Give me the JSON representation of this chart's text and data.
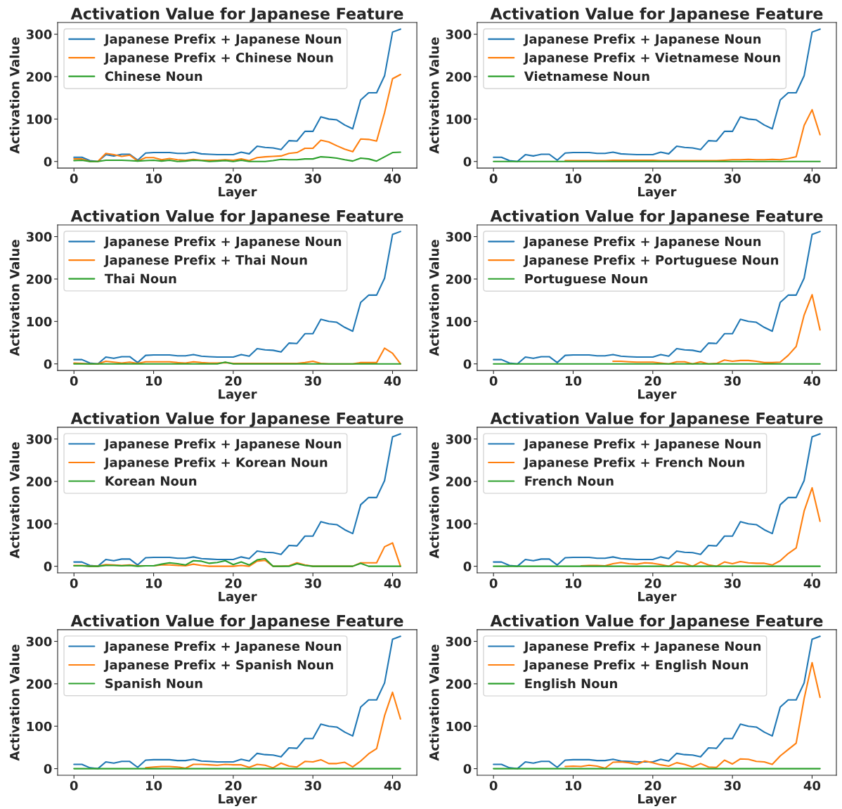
{
  "chart_data": [
    {
      "type": "line",
      "title": "Activation Value for Japanese Feature",
      "xlabel": "Layer",
      "ylabel": "Activation Value",
      "legend": "top left",
      "xlim": [
        -2.05,
        43.05
      ],
      "ylim": [
        -15.6,
        327.6
      ],
      "xticks": [
        0,
        10,
        20,
        30,
        40
      ],
      "yticks": [
        0,
        100,
        200,
        300
      ],
      "x": [
        0,
        1,
        2,
        3,
        4,
        5,
        6,
        7,
        8,
        9,
        10,
        11,
        12,
        13,
        14,
        15,
        16,
        17,
        18,
        19,
        20,
        21,
        22,
        23,
        24,
        25,
        26,
        27,
        28,
        29,
        30,
        31,
        32,
        33,
        34,
        35,
        36,
        37,
        38,
        39,
        40,
        41
      ],
      "series": [
        {
          "name": "Japanese Prefix + Japanese Noun",
          "color": "#1f77b4",
          "values": [
            10,
            10,
            2,
            0,
            16,
            13,
            17,
            17,
            3,
            20,
            21,
            21,
            21,
            19,
            19,
            22,
            18,
            17,
            16,
            16,
            16,
            22,
            18,
            36,
            33,
            32,
            28,
            49,
            48,
            71,
            71,
            105,
            100,
            98,
            86,
            77,
            145,
            162,
            162,
            202,
            305,
            312
          ]
        },
        {
          "name": "Japanese Prefix + Chinese Noun",
          "color": "#ff7f0e",
          "values": [
            6,
            6,
            0,
            0,
            19,
            16,
            12,
            15,
            1,
            9,
            9,
            4,
            7,
            4,
            3,
            5,
            3,
            3,
            3,
            4,
            3,
            6,
            2,
            9,
            11,
            12,
            13,
            19,
            21,
            31,
            31,
            50,
            46,
            37,
            29,
            23,
            53,
            52,
            48,
            115,
            195,
            205
          ]
        },
        {
          "name": "Chinese Noun",
          "color": "#2ca02c",
          "values": [
            2,
            3,
            0,
            0,
            3,
            3,
            3,
            2,
            1,
            2,
            3,
            1,
            3,
            0,
            1,
            3,
            2,
            0,
            1,
            2,
            0,
            3,
            0,
            0,
            0,
            2,
            5,
            4,
            4,
            6,
            6,
            11,
            10,
            8,
            4,
            1,
            8,
            6,
            1,
            11,
            21,
            22
          ]
        }
      ]
    },
    {
      "type": "line",
      "title": "Activation Value for Japanese Feature",
      "xlabel": "Layer",
      "ylabel": "Activation Value",
      "legend": "top left",
      "xlim": [
        -2.05,
        43.05
      ],
      "ylim": [
        -15.6,
        327.6
      ],
      "xticks": [
        0,
        10,
        20,
        30,
        40
      ],
      "yticks": [
        0,
        100,
        200,
        300
      ],
      "x": [
        0,
        1,
        2,
        3,
        4,
        5,
        6,
        7,
        8,
        9,
        10,
        11,
        12,
        13,
        14,
        15,
        16,
        17,
        18,
        19,
        20,
        21,
        22,
        23,
        24,
        25,
        26,
        27,
        28,
        29,
        30,
        31,
        32,
        33,
        34,
        35,
        36,
        37,
        38,
        39,
        40,
        41
      ],
      "series": [
        {
          "name": "Japanese Prefix + Japanese Noun",
          "color": "#1f77b4",
          "values": [
            10,
            10,
            2,
            0,
            16,
            13,
            17,
            17,
            3,
            20,
            21,
            21,
            21,
            19,
            19,
            22,
            18,
            17,
            16,
            16,
            16,
            22,
            18,
            36,
            33,
            32,
            28,
            49,
            48,
            71,
            71,
            105,
            100,
            98,
            86,
            77,
            145,
            162,
            162,
            202,
            305,
            312
          ]
        },
        {
          "name": "Japanese Prefix + Vietnamese Noun",
          "color": "#ff7f0e",
          "values": [
            null,
            null,
            null,
            null,
            null,
            null,
            null,
            null,
            null,
            2,
            2,
            2,
            2,
            2,
            2,
            3,
            3,
            3,
            3,
            3,
            3,
            2,
            2,
            2,
            2,
            2,
            2,
            2,
            2,
            3,
            4,
            4,
            5,
            4,
            4,
            5,
            4,
            7,
            11,
            85,
            122,
            63
          ]
        },
        {
          "name": "Vietnamese Noun",
          "color": "#2ca02c",
          "values": [
            0,
            0,
            0,
            0,
            0,
            0,
            0,
            0,
            0,
            0,
            0,
            0,
            0,
            0,
            0,
            0,
            0,
            0,
            0,
            0,
            0,
            0,
            0,
            0,
            0,
            0,
            0,
            0,
            0,
            0,
            0,
            0,
            0,
            0,
            0,
            0,
            0,
            0,
            0,
            0,
            0,
            0
          ]
        }
      ]
    },
    {
      "type": "line",
      "title": "Activation Value for Japanese Feature",
      "xlabel": "Layer",
      "ylabel": "Activation Value",
      "legend": "top left",
      "xlim": [
        -2.05,
        43.05
      ],
      "ylim": [
        -15.6,
        327.6
      ],
      "xticks": [
        0,
        10,
        20,
        30,
        40
      ],
      "yticks": [
        0,
        100,
        200,
        300
      ],
      "x": [
        0,
        1,
        2,
        3,
        4,
        5,
        6,
        7,
        8,
        9,
        10,
        11,
        12,
        13,
        14,
        15,
        16,
        17,
        18,
        19,
        20,
        21,
        22,
        23,
        24,
        25,
        26,
        27,
        28,
        29,
        30,
        31,
        32,
        33,
        34,
        35,
        36,
        37,
        38,
        39,
        40,
        41
      ],
      "series": [
        {
          "name": "Japanese Prefix + Japanese Noun",
          "color": "#1f77b4",
          "values": [
            10,
            10,
            2,
            0,
            16,
            13,
            17,
            17,
            3,
            20,
            21,
            21,
            21,
            19,
            19,
            22,
            18,
            17,
            16,
            16,
            16,
            22,
            18,
            36,
            33,
            32,
            28,
            49,
            48,
            71,
            71,
            105,
            100,
            98,
            86,
            77,
            145,
            162,
            162,
            202,
            305,
            312
          ]
        },
        {
          "name": "Japanese Prefix + Thai Noun",
          "color": "#ff7f0e",
          "values": [
            2,
            1,
            0,
            0,
            6,
            4,
            2,
            4,
            1,
            5,
            5,
            5,
            5,
            3,
            2,
            5,
            3,
            2,
            2,
            3,
            1,
            1,
            1,
            1,
            1,
            1,
            1,
            1,
            1,
            3,
            6,
            1,
            0,
            0,
            0,
            0,
            3,
            3,
            3,
            37,
            25,
            0
          ]
        },
        {
          "name": "Thai Noun",
          "color": "#2ca02c",
          "values": [
            0,
            0,
            0,
            0,
            0,
            0,
            0,
            0,
            0,
            0,
            0,
            0,
            0,
            0,
            0,
            0,
            0,
            0,
            0,
            4,
            0,
            0,
            0,
            0,
            0,
            0,
            0,
            0,
            0,
            0,
            0,
            0,
            0,
            0,
            0,
            0,
            0,
            0,
            0,
            0,
            0,
            0
          ]
        }
      ]
    },
    {
      "type": "line",
      "title": "Activation Value for Japanese Feature",
      "xlabel": "Layer",
      "ylabel": "Activation Value",
      "legend": "top left",
      "xlim": [
        -2.05,
        43.05
      ],
      "ylim": [
        -15.6,
        327.6
      ],
      "xticks": [
        0,
        10,
        20,
        30,
        40
      ],
      "yticks": [
        0,
        100,
        200,
        300
      ],
      "x": [
        0,
        1,
        2,
        3,
        4,
        5,
        6,
        7,
        8,
        9,
        10,
        11,
        12,
        13,
        14,
        15,
        16,
        17,
        18,
        19,
        20,
        21,
        22,
        23,
        24,
        25,
        26,
        27,
        28,
        29,
        30,
        31,
        32,
        33,
        34,
        35,
        36,
        37,
        38,
        39,
        40,
        41
      ],
      "series": [
        {
          "name": "Japanese Prefix + Japanese Noun",
          "color": "#1f77b4",
          "values": [
            10,
            10,
            2,
            0,
            16,
            13,
            17,
            17,
            3,
            20,
            21,
            21,
            21,
            19,
            19,
            22,
            18,
            17,
            16,
            16,
            16,
            22,
            18,
            36,
            33,
            32,
            28,
            49,
            48,
            71,
            71,
            105,
            100,
            98,
            86,
            77,
            145,
            162,
            162,
            202,
            305,
            312
          ]
        },
        {
          "name": "Japanese Prefix + Portuguese Noun",
          "color": "#ff7f0e",
          "values": [
            null,
            null,
            null,
            null,
            null,
            null,
            null,
            null,
            null,
            null,
            null,
            null,
            null,
            null,
            null,
            6,
            6,
            5,
            4,
            4,
            4,
            2,
            0,
            5,
            5,
            0,
            5,
            0,
            1,
            9,
            6,
            8,
            8,
            6,
            3,
            3,
            4,
            20,
            41,
            115,
            163,
            80
          ]
        },
        {
          "name": "Portuguese Noun",
          "color": "#2ca02c",
          "values": [
            0,
            0,
            0,
            0,
            0,
            0,
            0,
            0,
            0,
            0,
            0,
            0,
            0,
            0,
            0,
            0,
            0,
            0,
            0,
            0,
            0,
            0,
            0,
            0,
            0,
            0,
            0,
            0,
            0,
            0,
            0,
            0,
            0,
            0,
            0,
            0,
            0,
            0,
            0,
            0,
            0,
            0
          ]
        }
      ]
    },
    {
      "type": "line",
      "title": "Activation Value for Japanese Feature",
      "xlabel": "Layer",
      "ylabel": "Activation Value",
      "legend": "top left",
      "xlim": [
        -2.05,
        43.05
      ],
      "ylim": [
        -15.6,
        327.6
      ],
      "xticks": [
        0,
        10,
        20,
        30,
        40
      ],
      "yticks": [
        0,
        100,
        200,
        300
      ],
      "x": [
        0,
        1,
        2,
        3,
        4,
        5,
        6,
        7,
        8,
        9,
        10,
        11,
        12,
        13,
        14,
        15,
        16,
        17,
        18,
        19,
        20,
        21,
        22,
        23,
        24,
        25,
        26,
        27,
        28,
        29,
        30,
        31,
        32,
        33,
        34,
        35,
        36,
        37,
        38,
        39,
        40,
        41
      ],
      "series": [
        {
          "name": "Japanese Prefix + Japanese Noun",
          "color": "#1f77b4",
          "values": [
            10,
            10,
            2,
            0,
            16,
            13,
            17,
            17,
            3,
            20,
            21,
            21,
            21,
            19,
            19,
            22,
            18,
            17,
            16,
            16,
            16,
            22,
            18,
            36,
            33,
            32,
            28,
            49,
            48,
            71,
            71,
            105,
            100,
            98,
            86,
            77,
            145,
            162,
            162,
            202,
            305,
            312
          ]
        },
        {
          "name": "Japanese Prefix + Korean Noun",
          "color": "#ff7f0e",
          "values": [
            2,
            2,
            0,
            0,
            4,
            3,
            2,
            3,
            1,
            1,
            1,
            3,
            3,
            2,
            1,
            5,
            2,
            0,
            0,
            0,
            0,
            2,
            0,
            12,
            14,
            0,
            0,
            1,
            8,
            3,
            0,
            0,
            0,
            0,
            0,
            0,
            8,
            8,
            8,
            46,
            55,
            0
          ]
        },
        {
          "name": "Korean Noun",
          "color": "#2ca02c",
          "values": [
            1,
            1,
            0,
            0,
            2,
            2,
            1,
            2,
            0,
            1,
            1,
            5,
            8,
            6,
            3,
            13,
            12,
            7,
            9,
            13,
            4,
            10,
            3,
            15,
            18,
            0,
            0,
            0,
            6,
            2,
            0,
            0,
            0,
            0,
            0,
            0,
            7,
            0,
            0,
            0,
            0,
            0
          ]
        }
      ]
    },
    {
      "type": "line",
      "title": "Activation Value for Japanese Feature",
      "xlabel": "Layer",
      "ylabel": "Activation Value",
      "legend": "top left",
      "xlim": [
        -2.05,
        43.05
      ],
      "ylim": [
        -15.6,
        327.6
      ],
      "xticks": [
        0,
        10,
        20,
        30,
        40
      ],
      "yticks": [
        0,
        100,
        200,
        300
      ],
      "x": [
        0,
        1,
        2,
        3,
        4,
        5,
        6,
        7,
        8,
        9,
        10,
        11,
        12,
        13,
        14,
        15,
        16,
        17,
        18,
        19,
        20,
        21,
        22,
        23,
        24,
        25,
        26,
        27,
        28,
        29,
        30,
        31,
        32,
        33,
        34,
        35,
        36,
        37,
        38,
        39,
        40,
        41
      ],
      "series": [
        {
          "name": "Japanese Prefix + Japanese Noun",
          "color": "#1f77b4",
          "values": [
            10,
            10,
            2,
            0,
            16,
            13,
            17,
            17,
            3,
            20,
            21,
            21,
            21,
            19,
            19,
            22,
            18,
            17,
            16,
            16,
            16,
            22,
            18,
            36,
            33,
            32,
            28,
            49,
            48,
            71,
            71,
            105,
            100,
            98,
            86,
            77,
            145,
            162,
            162,
            202,
            305,
            312
          ]
        },
        {
          "name": "Japanese Prefix + French Noun",
          "color": "#ff7f0e",
          "values": [
            null,
            null,
            null,
            null,
            null,
            null,
            null,
            null,
            null,
            null,
            null,
            1,
            2,
            2,
            1,
            6,
            9,
            6,
            5,
            8,
            7,
            4,
            0,
            10,
            7,
            0,
            10,
            3,
            0,
            10,
            6,
            11,
            8,
            7,
            7,
            3,
            13,
            30,
            43,
            130,
            185,
            106
          ]
        },
        {
          "name": "French Noun",
          "color": "#2ca02c",
          "values": [
            0,
            0,
            0,
            0,
            0,
            0,
            0,
            0,
            0,
            0,
            0,
            0,
            0,
            0,
            0,
            0,
            0,
            0,
            0,
            0,
            0,
            0,
            0,
            0,
            0,
            0,
            0,
            0,
            0,
            0,
            0,
            0,
            0,
            0,
            0,
            0,
            0,
            0,
            0,
            0,
            0,
            0
          ]
        }
      ]
    },
    {
      "type": "line",
      "title": "Activation Value for Japanese Feature",
      "xlabel": "Layer",
      "ylabel": "Activation Value",
      "legend": "top left",
      "xlim": [
        -2.05,
        43.05
      ],
      "ylim": [
        -15.6,
        327.6
      ],
      "xticks": [
        0,
        10,
        20,
        30,
        40
      ],
      "yticks": [
        0,
        100,
        200,
        300
      ],
      "x": [
        0,
        1,
        2,
        3,
        4,
        5,
        6,
        7,
        8,
        9,
        10,
        11,
        12,
        13,
        14,
        15,
        16,
        17,
        18,
        19,
        20,
        21,
        22,
        23,
        24,
        25,
        26,
        27,
        28,
        29,
        30,
        31,
        32,
        33,
        34,
        35,
        36,
        37,
        38,
        39,
        40,
        41
      ],
      "series": [
        {
          "name": "Japanese Prefix + Japanese Noun",
          "color": "#1f77b4",
          "values": [
            10,
            10,
            2,
            0,
            16,
            13,
            17,
            17,
            3,
            20,
            21,
            21,
            21,
            19,
            19,
            22,
            18,
            17,
            16,
            16,
            16,
            22,
            18,
            36,
            33,
            32,
            28,
            49,
            48,
            71,
            71,
            105,
            100,
            98,
            86,
            77,
            145,
            162,
            162,
            202,
            305,
            312
          ]
        },
        {
          "name": "Japanese Prefix + Spanish Noun",
          "color": "#ff7f0e",
          "values": [
            null,
            null,
            null,
            null,
            null,
            null,
            null,
            null,
            null,
            2,
            4,
            5,
            5,
            4,
            1,
            10,
            10,
            9,
            8,
            10,
            9,
            9,
            3,
            10,
            8,
            2,
            13,
            6,
            4,
            17,
            16,
            21,
            12,
            12,
            15,
            4,
            18,
            35,
            47,
            125,
            180,
            117
          ]
        },
        {
          "name": "Spanish Noun",
          "color": "#2ca02c",
          "values": [
            0,
            0,
            0,
            0,
            0,
            0,
            0,
            0,
            0,
            0,
            0,
            0,
            0,
            0,
            0,
            0,
            0,
            0,
            0,
            0,
            0,
            0,
            0,
            0,
            0,
            0,
            0,
            0,
            0,
            0,
            0,
            0,
            0,
            0,
            0,
            0,
            0,
            0,
            0,
            0,
            0,
            0
          ]
        }
      ]
    },
    {
      "type": "line",
      "title": "Activation Value for Japanese Feature",
      "xlabel": "Layer",
      "ylabel": "Activation Value",
      "legend": "top left",
      "xlim": [
        -2.05,
        43.05
      ],
      "ylim": [
        -15.6,
        327.6
      ],
      "xticks": [
        0,
        10,
        20,
        30,
        40
      ],
      "yticks": [
        0,
        100,
        200,
        300
      ],
      "x": [
        0,
        1,
        2,
        3,
        4,
        5,
        6,
        7,
        8,
        9,
        10,
        11,
        12,
        13,
        14,
        15,
        16,
        17,
        18,
        19,
        20,
        21,
        22,
        23,
        24,
        25,
        26,
        27,
        28,
        29,
        30,
        31,
        32,
        33,
        34,
        35,
        36,
        37,
        38,
        39,
        40,
        41
      ],
      "series": [
        {
          "name": "Japanese Prefix + Japanese Noun",
          "color": "#1f77b4",
          "values": [
            10,
            10,
            2,
            0,
            16,
            13,
            17,
            17,
            3,
            20,
            21,
            21,
            21,
            19,
            19,
            22,
            18,
            17,
            16,
            16,
            16,
            22,
            18,
            36,
            33,
            32,
            28,
            49,
            48,
            71,
            71,
            105,
            100,
            98,
            86,
            77,
            145,
            162,
            162,
            202,
            305,
            312
          ]
        },
        {
          "name": "Japanese Prefix + English Noun",
          "color": "#ff7f0e",
          "values": [
            null,
            null,
            null,
            null,
            null,
            null,
            null,
            null,
            null,
            5,
            6,
            5,
            8,
            6,
            1,
            15,
            16,
            14,
            10,
            18,
            14,
            9,
            6,
            14,
            10,
            4,
            12,
            4,
            3,
            20,
            11,
            23,
            22,
            17,
            16,
            10,
            30,
            45,
            60,
            165,
            250,
            168
          ]
        },
        {
          "name": "English Noun",
          "color": "#2ca02c",
          "values": [
            0,
            0,
            0,
            0,
            0,
            0,
            0,
            0,
            0,
            0,
            0,
            0,
            0,
            0,
            0,
            0,
            0,
            0,
            0,
            0,
            0,
            0,
            0,
            0,
            0,
            0,
            0,
            0,
            0,
            0,
            0,
            0,
            0,
            0,
            0,
            0,
            0,
            0,
            0,
            0,
            0,
            0
          ]
        }
      ]
    }
  ]
}
